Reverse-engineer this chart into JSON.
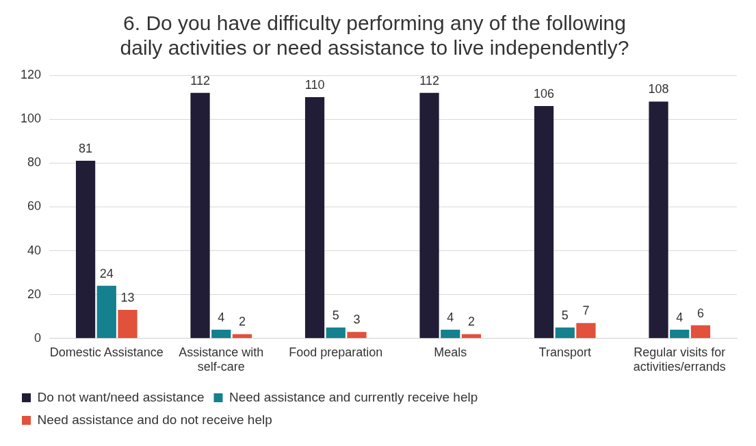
{
  "chart_data": {
    "type": "bar",
    "title": "6. Do you have difficulty performing any of the following daily activities or need assistance to live independently?",
    "categories": [
      "Domestic Assistance",
      "Assistance with self-care",
      "Food preparation",
      "Meals",
      "Transport",
      "Regular visits for activities/errands"
    ],
    "series": [
      {
        "name": "Do not want/need assistance",
        "color": "#221d36",
        "values": [
          81,
          112,
          110,
          112,
          106,
          108
        ]
      },
      {
        "name": "Need assistance and currently receive help",
        "color": "#15808e",
        "values": [
          24,
          4,
          5,
          4,
          5,
          4
        ]
      },
      {
        "name": "Need assistance and do not receive help",
        "color": "#e1513b",
        "values": [
          13,
          2,
          3,
          2,
          7,
          6
        ]
      }
    ],
    "ylim": [
      0,
      120
    ],
    "yticks": [
      0,
      20,
      40,
      60,
      80,
      100,
      120
    ],
    "grid": "y",
    "legend": "bottom",
    "data_labels": true
  }
}
